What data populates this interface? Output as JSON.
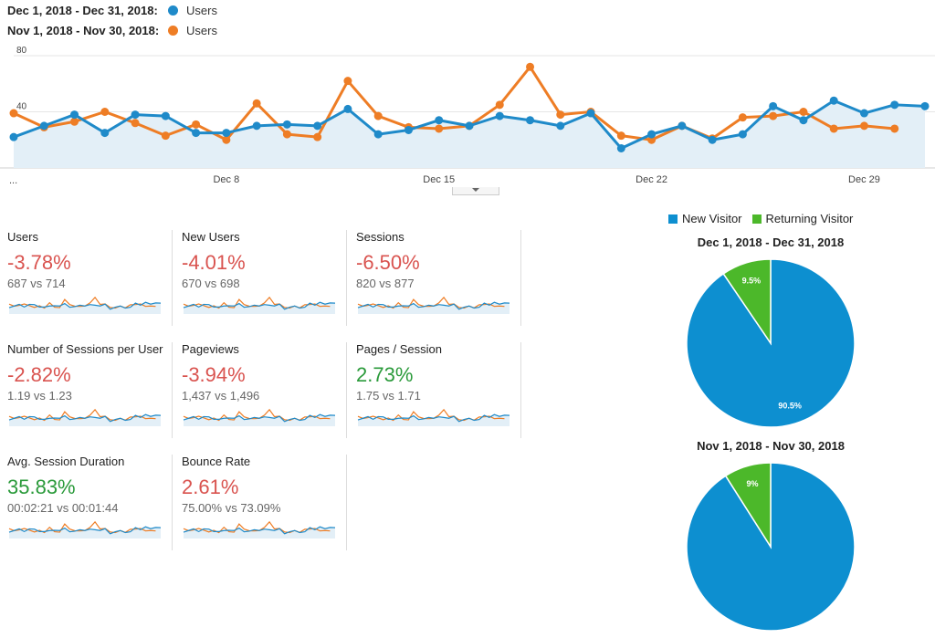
{
  "colors": {
    "current": "#1f8ac9",
    "previous": "#ee7d25",
    "new_visitor": "#0d8fd0",
    "returning_visitor": "#4cb82a",
    "negative": "#d9534f",
    "positive": "#2a9a3a"
  },
  "legend": {
    "current_range": "Dec 1, 2018 - Dec 31, 2018:",
    "current_metric": "Users",
    "previous_range": "Nov 1, 2018 - Nov 30, 2018:",
    "previous_metric": "Users"
  },
  "chart_data": {
    "type": "line",
    "ylim": [
      0,
      80
    ],
    "yticks": [
      80,
      40
    ],
    "xticks": [
      {
        "label": "...",
        "day": 0
      },
      {
        "label": "Dec 8",
        "day": 8
      },
      {
        "label": "Dec 15",
        "day": 15
      },
      {
        "label": "Dec 22",
        "day": 22
      },
      {
        "label": "Dec 29",
        "day": 29
      }
    ],
    "series": [
      {
        "name": "Users",
        "range": "Dec 1, 2018 - Dec 31, 2018",
        "x": [
          1,
          2,
          3,
          4,
          5,
          6,
          7,
          8,
          9,
          10,
          11,
          12,
          13,
          14,
          15,
          16,
          17,
          18,
          19,
          20,
          21,
          22,
          23,
          24,
          25,
          26,
          27,
          28,
          29,
          30,
          31
        ],
        "values": [
          22,
          30,
          38,
          25,
          38,
          37,
          25,
          25,
          30,
          31,
          30,
          42,
          24,
          27,
          34,
          30,
          37,
          34,
          30,
          39,
          14,
          24,
          30,
          20,
          24,
          44,
          34,
          48,
          39,
          45,
          44
        ]
      },
      {
        "name": "Users",
        "range": "Nov 1, 2018 - Nov 30, 2018",
        "x": [
          1,
          2,
          3,
          4,
          5,
          6,
          7,
          8,
          9,
          10,
          11,
          12,
          13,
          14,
          15,
          16,
          17,
          18,
          19,
          20,
          21,
          22,
          23,
          24,
          25,
          26,
          27,
          28,
          29,
          30
        ],
        "values": [
          39,
          29,
          33,
          40,
          32,
          23,
          31,
          20,
          46,
          24,
          22,
          62,
          37,
          29,
          28,
          30,
          45,
          72,
          38,
          40,
          23,
          20,
          30,
          21,
          36,
          37,
          40,
          28,
          30,
          28
        ]
      }
    ]
  },
  "tiles": [
    {
      "label": "Users",
      "pct": "-3.78%",
      "trend": "neg",
      "compare": "687 vs 714"
    },
    {
      "label": "New Users",
      "pct": "-4.01%",
      "trend": "neg",
      "compare": "670 vs 698"
    },
    {
      "label": "Sessions",
      "pct": "-6.50%",
      "trend": "neg",
      "compare": "820 vs 877"
    },
    {
      "label": "Number of Sessions per User",
      "pct": "-2.82%",
      "trend": "neg",
      "compare": "1.19 vs 1.23"
    },
    {
      "label": "Pageviews",
      "pct": "-3.94%",
      "trend": "neg",
      "compare": "1,437 vs 1,496"
    },
    {
      "label": "Pages / Session",
      "pct": "2.73%",
      "trend": "pos",
      "compare": "1.75 vs 1.71"
    },
    {
      "label": "Avg. Session Duration",
      "pct": "35.83%",
      "trend": "pos",
      "compare": "00:02:21 vs 00:01:44"
    },
    {
      "label": "Bounce Rate",
      "pct": "2.61%",
      "trend": "neg",
      "compare": "75.00% vs 73.09%"
    }
  ],
  "pies": {
    "legend": [
      {
        "label": "New Visitor"
      },
      {
        "label": "Returning Visitor"
      }
    ],
    "charts": [
      {
        "title": "Dec 1, 2018 - Dec 31, 2018",
        "type": "pie",
        "slices": [
          {
            "label": "New Visitor",
            "value": 90.5,
            "text": "90.5%"
          },
          {
            "label": "Returning Visitor",
            "value": 9.5,
            "text": "9.5%"
          }
        ]
      },
      {
        "title": "Nov 1, 2018 - Nov 30, 2018",
        "type": "pie",
        "slices": [
          {
            "label": "New Visitor",
            "value": 91,
            "text": ""
          },
          {
            "label": "Returning Visitor",
            "value": 9,
            "text": "9%"
          }
        ]
      }
    ]
  }
}
